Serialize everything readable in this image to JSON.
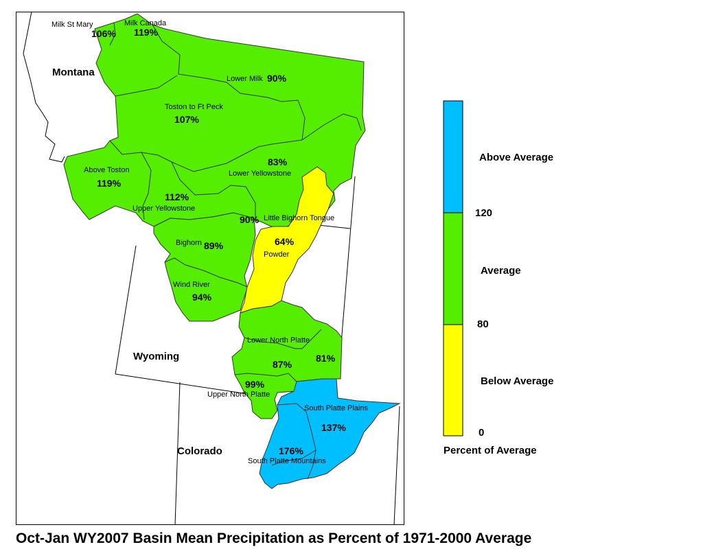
{
  "title": "Oct-Jan WY2007 Basin Mean Precipitation as Percent of 1971-2000 Average",
  "colors": {
    "above": "#00BFFF",
    "average": "#55EE00",
    "below": "#FFFF00"
  },
  "states": {
    "montana": "Montana",
    "wyoming": "Wyoming",
    "colorado": "Colorado"
  },
  "basins": {
    "milk_st_mary": {
      "name": "Milk St Mary",
      "pct": "106%",
      "category": "average"
    },
    "milk_canada": {
      "name": "Milk Canada",
      "pct": "119%",
      "category": "average"
    },
    "lower_milk": {
      "name": "Lower Milk",
      "pct": "90%",
      "category": "average"
    },
    "toston_ft_peck": {
      "name": "Toston to Ft Peck",
      "pct": "107%",
      "category": "average"
    },
    "above_toston": {
      "name": "Above Toston",
      "pct": "119%",
      "category": "average"
    },
    "lower_yellowstone": {
      "name": "Lower Yellowstone",
      "pct": "83%",
      "category": "average"
    },
    "upper_yellowstone": {
      "name": "Upper Yellowstone",
      "pct": "112%",
      "category": "average"
    },
    "little_bighorn": {
      "name": "Little Bighorn Tongue",
      "pct": "90%",
      "category": "average"
    },
    "powder": {
      "name": "Powder",
      "pct": "64%",
      "category": "below"
    },
    "bighorn": {
      "name": "Bighorn",
      "pct": "89%",
      "category": "average"
    },
    "wind_river": {
      "name": "Wind River",
      "pct": "94%",
      "category": "average"
    },
    "lower_north_platte": {
      "name": "Lower North Platte",
      "pct": "87%",
      "category": "average"
    },
    "npl_east": {
      "name": "",
      "pct": "81%",
      "category": "average"
    },
    "upper_north_platte": {
      "name": "Upper North Platte",
      "pct": "99%",
      "category": "average"
    },
    "south_platte_plains": {
      "name": "South Platte Plains",
      "pct": "137%",
      "category": "above"
    },
    "south_platte_mtns": {
      "name": "South Platte Mountains",
      "pct": "176%",
      "category": "above"
    }
  },
  "legend": {
    "title": "Percent of Average",
    "classes": [
      {
        "label": "Above Average",
        "color": "#00BFFF"
      },
      {
        "label": "Average",
        "color": "#55EE00"
      },
      {
        "label": "Below Average",
        "color": "#FFFF00"
      }
    ],
    "breaks": [
      "120",
      "80",
      "0"
    ]
  }
}
